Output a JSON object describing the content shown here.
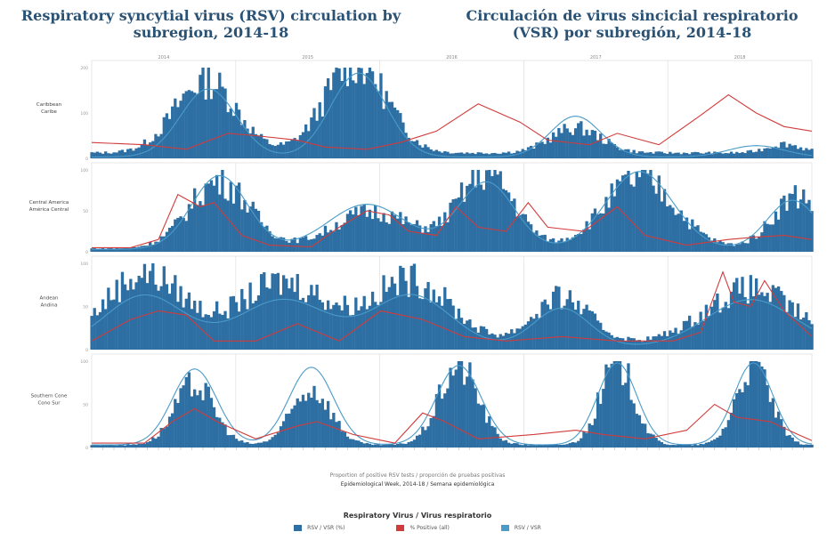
{
  "title_en": "Respiratory syncytial virus (RSV) circulation by subregion, 2014-18",
  "title_es": "Circulación de virus sincicial respiratorio (VSR) por subregión, 2014-18",
  "x_caption_1": "Proportion of positive RSV tests / proporción de pruebas positivas",
  "x_caption_2": "Epidemiological Week, 2014-18 / Semana epidemiológica",
  "legend": {
    "title": "Respiratory Virus / Virus respiratorio",
    "items": [
      {
        "label": "RSV / VSR  (%)",
        "color": "#2e6fa3"
      },
      {
        "label": "% Positive (all)",
        "color": "#d23b3b"
      },
      {
        "label": "RSV / VSR",
        "color": "#4a9bc8"
      }
    ]
  },
  "chart_data": {
    "type": "bar",
    "x_range": [
      1,
      260
    ],
    "year_labels": [
      "2014",
      "2015",
      "2016",
      "2017",
      "2018"
    ],
    "colors": {
      "bar": "#2e6fa3",
      "line_red": "#d23b3b",
      "line_blue": "#4a9bc8"
    },
    "panels": [
      {
        "name": "Caribbean / Caribe",
        "ylim": [
          0,
          200
        ],
        "y_ticks": [
          "0",
          "100",
          "200"
        ],
        "bar_peaks": [
          [
            42,
            11,
            160
          ],
          [
            96,
            11,
            200
          ],
          [
            175,
            9,
            55
          ],
          [
            250,
            6,
            20
          ]
        ],
        "bar_base": 12,
        "red_points": [
          [
            1,
            35
          ],
          [
            20,
            30
          ],
          [
            35,
            20
          ],
          [
            50,
            55
          ],
          [
            60,
            50
          ],
          [
            75,
            40
          ],
          [
            85,
            25
          ],
          [
            100,
            20
          ],
          [
            112,
            35
          ],
          [
            125,
            60
          ],
          [
            140,
            120
          ],
          [
            155,
            80
          ],
          [
            165,
            40
          ],
          [
            180,
            30
          ],
          [
            190,
            55
          ],
          [
            205,
            30
          ],
          [
            220,
            95
          ],
          [
            230,
            140
          ],
          [
            240,
            100
          ],
          [
            250,
            70
          ],
          [
            260,
            60
          ]
        ],
        "blue_peaks": [
          [
            43,
            10,
            150
          ],
          [
            97,
            10,
            185
          ],
          [
            175,
            9,
            90
          ],
          [
            240,
            10,
            25
          ]
        ]
      },
      {
        "name": "Central America / América Central",
        "ylim": [
          0,
          100
        ],
        "y_ticks": [
          "0",
          "50",
          "100"
        ],
        "bar_peaks": [
          [
            47,
            11,
            82
          ],
          [
            102,
            14,
            45
          ],
          [
            143,
            10,
            92
          ],
          [
            198,
            13,
            85
          ],
          [
            255,
            9,
            65
          ]
        ],
        "bar_base": 4,
        "red_points": [
          [
            1,
            5
          ],
          [
            15,
            5
          ],
          [
            25,
            15
          ],
          [
            32,
            70
          ],
          [
            40,
            55
          ],
          [
            45,
            60
          ],
          [
            55,
            20
          ],
          [
            65,
            8
          ],
          [
            80,
            6
          ],
          [
            90,
            30
          ],
          [
            100,
            50
          ],
          [
            108,
            45
          ],
          [
            115,
            25
          ],
          [
            125,
            20
          ],
          [
            132,
            55
          ],
          [
            140,
            30
          ],
          [
            150,
            25
          ],
          [
            158,
            60
          ],
          [
            165,
            30
          ],
          [
            178,
            25
          ],
          [
            190,
            55
          ],
          [
            200,
            20
          ],
          [
            215,
            8
          ],
          [
            230,
            15
          ],
          [
            240,
            18
          ],
          [
            250,
            20
          ],
          [
            260,
            15
          ]
        ],
        "blue_peaks": [
          [
            47,
            10,
            90
          ],
          [
            100,
            14,
            55
          ],
          [
            143,
            10,
            82
          ],
          [
            198,
            12,
            95
          ],
          [
            253,
            9,
            60
          ]
        ]
      },
      {
        "name": "Andean / Andina",
        "ylim": [
          0,
          100
        ],
        "y_ticks": [
          "0",
          "50",
          "100"
        ],
        "bar_peaks": [
          [
            20,
            14,
            80
          ],
          [
            70,
            16,
            70
          ],
          [
            116,
            14,
            72
          ],
          [
            170,
            10,
            52
          ],
          [
            238,
            16,
            62
          ]
        ],
        "bar_base": 8,
        "red_points": [
          [
            1,
            10
          ],
          [
            15,
            35
          ],
          [
            25,
            45
          ],
          [
            35,
            40
          ],
          [
            45,
            10
          ],
          [
            60,
            10
          ],
          [
            75,
            30
          ],
          [
            90,
            10
          ],
          [
            105,
            45
          ],
          [
            120,
            35
          ],
          [
            135,
            15
          ],
          [
            150,
            10
          ],
          [
            170,
            15
          ],
          [
            190,
            10
          ],
          [
            210,
            10
          ],
          [
            220,
            20
          ],
          [
            228,
            90
          ],
          [
            232,
            55
          ],
          [
            238,
            50
          ],
          [
            243,
            80
          ],
          [
            250,
            45
          ],
          [
            260,
            15
          ]
        ],
        "blue_peaks": [
          [
            20,
            14,
            60
          ],
          [
            70,
            16,
            55
          ],
          [
            116,
            14,
            60
          ],
          [
            170,
            10,
            45
          ],
          [
            238,
            16,
            55
          ]
        ]
      },
      {
        "name": "Southern Cone / Cono Sur",
        "ylim": [
          0,
          100
        ],
        "y_ticks": [
          "0",
          "50",
          "100"
        ],
        "bar_peaks": [
          [
            38,
            7,
            70
          ],
          [
            80,
            7,
            65
          ],
          [
            133,
            7,
            92
          ],
          [
            190,
            6,
            95
          ],
          [
            239,
            6,
            95
          ]
        ],
        "bar_base": 3,
        "red_points": [
          [
            1,
            5
          ],
          [
            20,
            5
          ],
          [
            30,
            30
          ],
          [
            38,
            45
          ],
          [
            46,
            30
          ],
          [
            60,
            10
          ],
          [
            75,
            25
          ],
          [
            82,
            30
          ],
          [
            95,
            15
          ],
          [
            110,
            5
          ],
          [
            120,
            40
          ],
          [
            128,
            30
          ],
          [
            140,
            10
          ],
          [
            160,
            15
          ],
          [
            175,
            20
          ],
          [
            185,
            15
          ],
          [
            200,
            10
          ],
          [
            215,
            20
          ],
          [
            225,
            50
          ],
          [
            233,
            35
          ],
          [
            245,
            30
          ],
          [
            255,
            15
          ],
          [
            260,
            8
          ]
        ],
        "blue_peaks": [
          [
            38,
            8,
            88
          ],
          [
            80,
            8,
            90
          ],
          [
            133,
            8,
            92
          ],
          [
            190,
            7,
            95
          ],
          [
            239,
            7,
            95
          ]
        ]
      }
    ]
  }
}
